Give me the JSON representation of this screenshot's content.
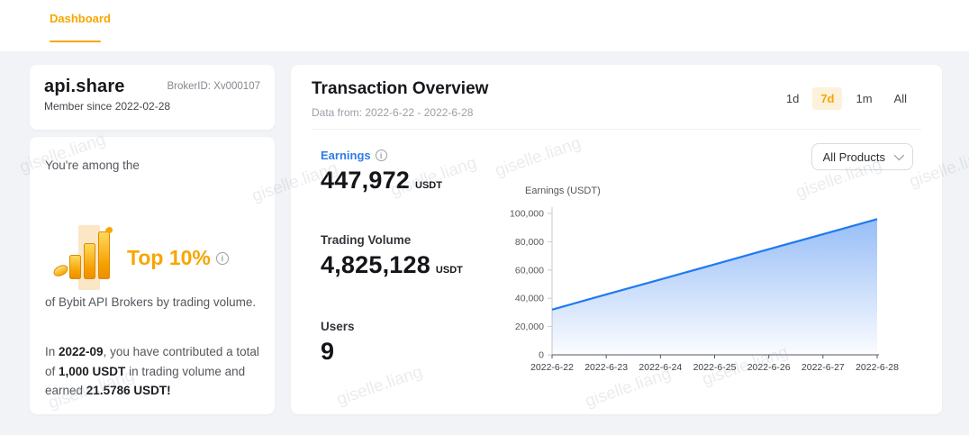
{
  "header": {
    "tab": "Dashboard"
  },
  "watermark": {
    "text": "giselle.liang"
  },
  "profile_card": {
    "name": "api.share",
    "broker_id": "BrokerID: Xv000107",
    "member_since": "Member since 2022-02-28"
  },
  "rank_card": {
    "intro": "You're among the",
    "rank": "Top 10%",
    "description": "of Bybit API Brokers by trading volume.",
    "contribution": {
      "prefix": "In ",
      "month": "2022-09",
      "mid1": ", you have contributed a total of ",
      "volume": "1,000 USDT",
      "mid2": " in trading volume and earned ",
      "earned": "21.5786 USDT!"
    }
  },
  "overview": {
    "title": "Transaction Overview",
    "date_range": "Data from: 2022-6-22 - 2022-6-28",
    "ranges": [
      {
        "label": "1d",
        "selected": false
      },
      {
        "label": "7d",
        "selected": true
      },
      {
        "label": "1m",
        "selected": false
      },
      {
        "label": "All",
        "selected": false
      }
    ],
    "product_filter": "All Products",
    "stats": [
      {
        "label": "Earnings",
        "value": "447,972",
        "unit": "USDT"
      },
      {
        "label": "Trading Volume",
        "value": "4,825,128",
        "unit": "USDT"
      },
      {
        "label": "Users",
        "value": "9",
        "unit": ""
      }
    ]
  },
  "chart_data": {
    "type": "area",
    "title": "Earnings (USDT)",
    "x": [
      "2022-6-22",
      "2022-6-23",
      "2022-6-24",
      "2022-6-25",
      "2022-6-26",
      "2022-6-27",
      "2022-6-28"
    ],
    "values": [
      32000,
      42700,
      53300,
      64000,
      74700,
      85300,
      96000
    ],
    "ylim": [
      0,
      100000
    ],
    "yticks": [
      0,
      20000,
      40000,
      60000,
      80000,
      100000
    ],
    "xlabel": "",
    "ylabel": "Earnings (USDT)",
    "grid": false,
    "legend": "none",
    "line_color": "#1f7af0",
    "fill_top": "rgba(48,124,238,0.50)",
    "fill_bottom": "rgba(48,124,238,0.02)"
  },
  "colors": {
    "accent": "#f7a600",
    "accent_bg": "#fcf1da",
    "link_blue": "#2d7ce8",
    "line_blue": "#1f7af0",
    "page_bg": "#f1f3f6"
  }
}
